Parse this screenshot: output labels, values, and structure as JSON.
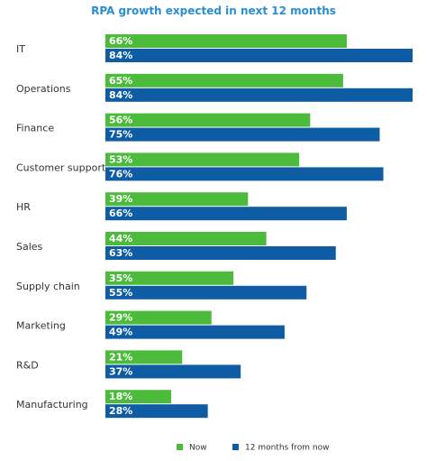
{
  "chart_data": {
    "type": "bar",
    "orientation": "horizontal",
    "title": "RPA growth expected in next 12 months",
    "categories": [
      "IT",
      "Operations",
      "Finance",
      "Customer support",
      "HR",
      "Sales",
      "Supply chain",
      "Marketing",
      "R&D",
      "Manufacturing"
    ],
    "series": [
      {
        "name": "Now",
        "values": [
          66,
          65,
          56,
          53,
          39,
          44,
          35,
          29,
          21,
          18
        ],
        "color": "#4cbb3c"
      },
      {
        "name": "12 months from now",
        "values": [
          84,
          84,
          75,
          76,
          66,
          63,
          55,
          49,
          37,
          28
        ],
        "color": "#0d5ca4"
      }
    ],
    "value_suffix": "%",
    "xlim": [
      0,
      84
    ],
    "grid": false,
    "legend_position": "bottom-center"
  },
  "colors": {
    "title": "#2a8fd0",
    "now": "#4cbb3c",
    "future": "#0d5ca4"
  }
}
